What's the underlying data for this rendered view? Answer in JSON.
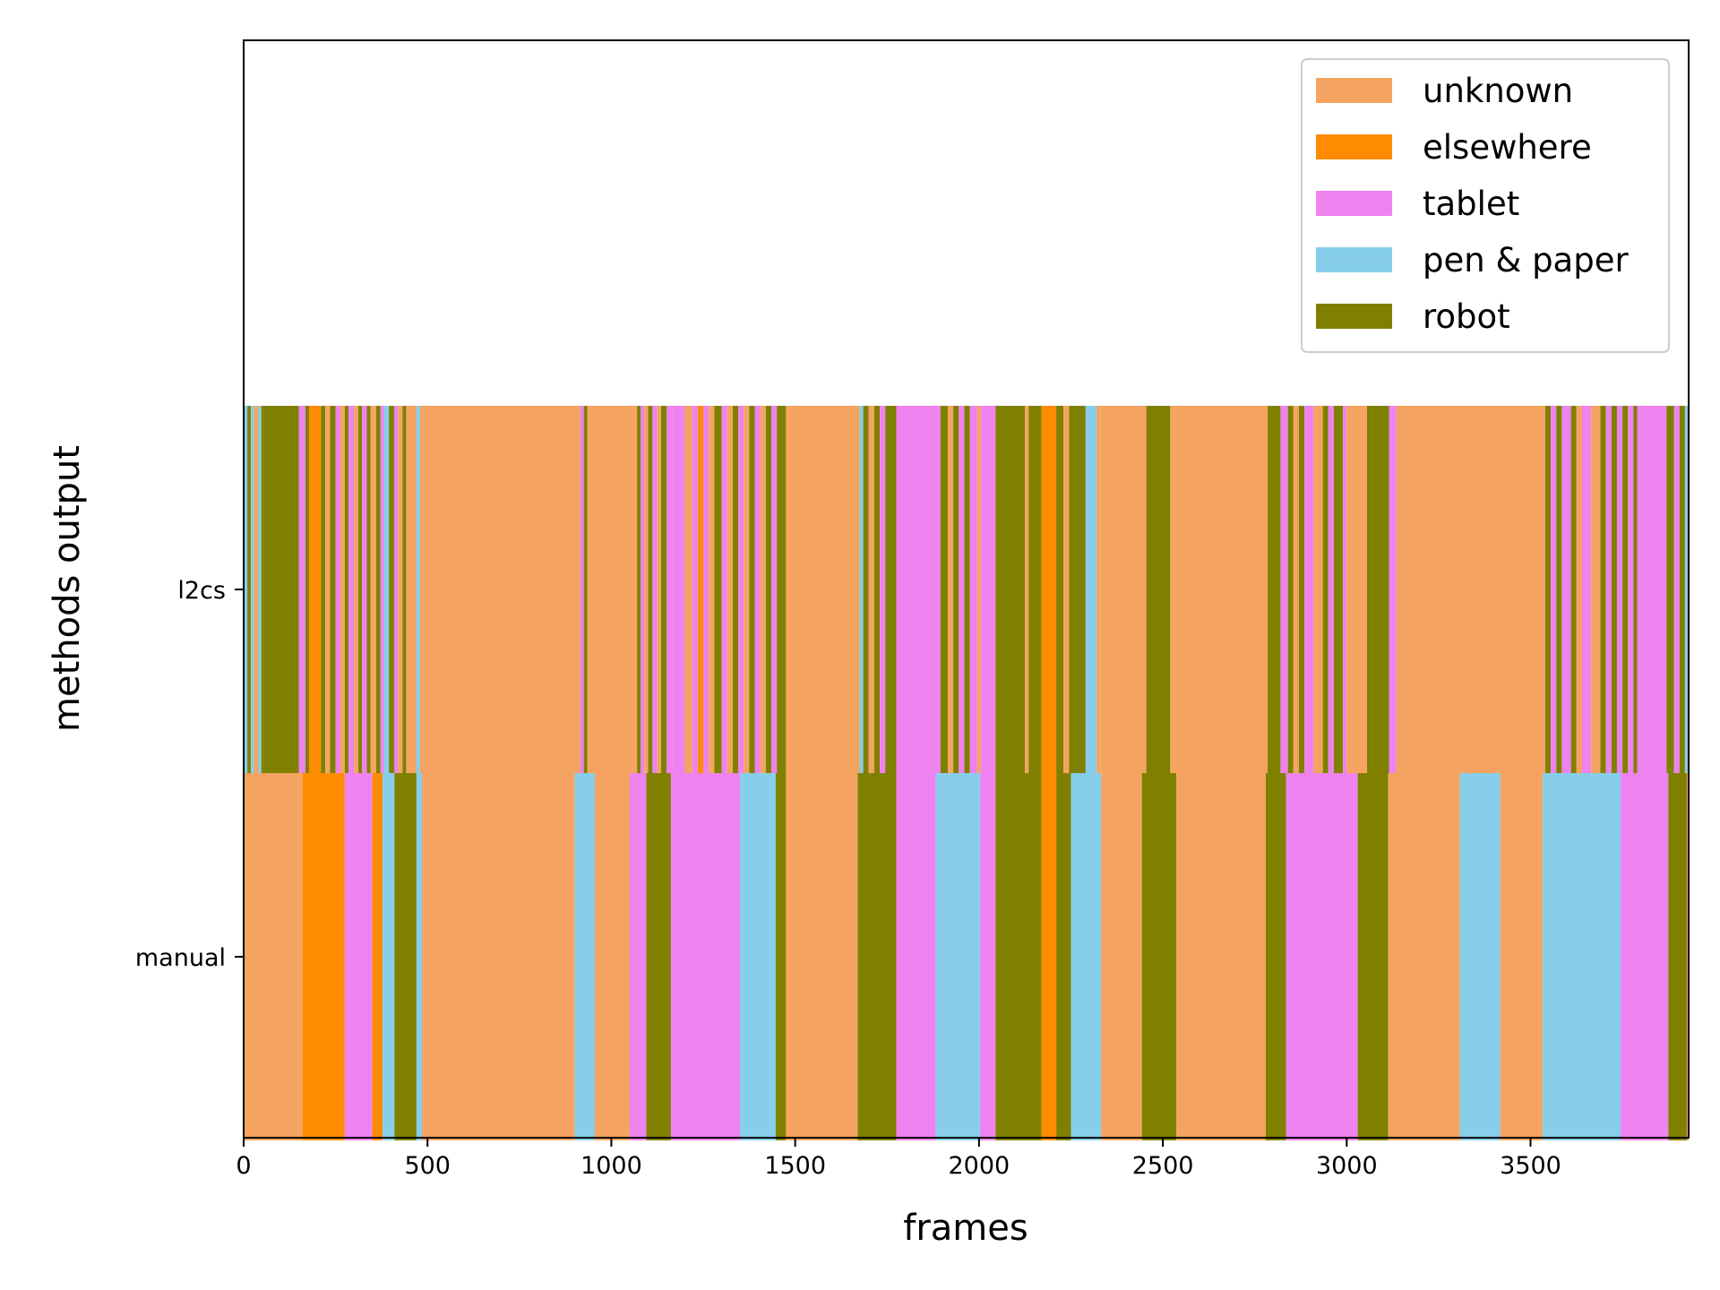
{
  "chart_data": {
    "type": "bar",
    "orientation": "horizontal-timeline",
    "title": "",
    "xlabel": "frames",
    "ylabel": "methods output",
    "xlim": [
      0,
      3930
    ],
    "x_ticks": [
      0,
      500,
      1000,
      1500,
      2000,
      2500,
      3000,
      3500
    ],
    "x_tick_labels": [
      "0",
      "500",
      "1000",
      "1500",
      "2000",
      "2500",
      "3000",
      "3500"
    ],
    "categories": [
      "manual",
      "l2cs"
    ],
    "grid": false,
    "legend_position": "top-right",
    "legend": [
      {
        "name": "unknown",
        "color": "#F4A460"
      },
      {
        "name": "elsewhere",
        "color": "#FF8C00"
      },
      {
        "name": "tablet",
        "color": "#EE82EE"
      },
      {
        "name": "pen & paper",
        "color": "#87CEEB"
      },
      {
        "name": "robot",
        "color": "#808000"
      }
    ],
    "series": [
      {
        "name": "manual",
        "segments": [
          [
            0,
            160,
            "unknown"
          ],
          [
            160,
            275,
            "elsewhere"
          ],
          [
            275,
            350,
            "tablet"
          ],
          [
            350,
            378,
            "elsewhere"
          ],
          [
            378,
            410,
            "pen & paper"
          ],
          [
            410,
            470,
            "robot"
          ],
          [
            470,
            485,
            "pen & paper"
          ],
          [
            485,
            900,
            "unknown"
          ],
          [
            900,
            955,
            "pen & paper"
          ],
          [
            955,
            1050,
            "unknown"
          ],
          [
            1050,
            1095,
            "tablet"
          ],
          [
            1095,
            1162,
            "robot"
          ],
          [
            1162,
            1350,
            "tablet"
          ],
          [
            1350,
            1447,
            "pen & paper"
          ],
          [
            1447,
            1475,
            "robot"
          ],
          [
            1475,
            1670,
            "unknown"
          ],
          [
            1670,
            1775,
            "robot"
          ],
          [
            1775,
            1882,
            "tablet"
          ],
          [
            1882,
            2003,
            "pen & paper"
          ],
          [
            2003,
            2045,
            "tablet"
          ],
          [
            2045,
            2170,
            "robot"
          ],
          [
            2170,
            2210,
            "elsewhere"
          ],
          [
            2210,
            2250,
            "robot"
          ],
          [
            2250,
            2332,
            "pen & paper"
          ],
          [
            2332,
            2443,
            "unknown"
          ],
          [
            2443,
            2537,
            "robot"
          ],
          [
            2537,
            2780,
            "unknown"
          ],
          [
            2780,
            2835,
            "robot"
          ],
          [
            2835,
            3030,
            "tablet"
          ],
          [
            3030,
            3113,
            "robot"
          ],
          [
            3113,
            3308,
            "unknown"
          ],
          [
            3308,
            3418,
            "pen & paper"
          ],
          [
            3418,
            3533,
            "unknown"
          ],
          [
            3533,
            3745,
            "pen & paper"
          ],
          [
            3745,
            3875,
            "tablet"
          ],
          [
            3875,
            3925,
            "robot"
          ],
          [
            3925,
            3930,
            "unknown"
          ]
        ]
      },
      {
        "name": "l2cs",
        "segments": [
          [
            0,
            10,
            "pen & paper"
          ],
          [
            10,
            20,
            "robot"
          ],
          [
            20,
            28,
            "pen & paper"
          ],
          [
            28,
            40,
            "unknown"
          ],
          [
            40,
            48,
            "pen & paper"
          ],
          [
            48,
            55,
            "robot"
          ],
          [
            55,
            150,
            "robot"
          ],
          [
            150,
            168,
            "tablet"
          ],
          [
            168,
            178,
            "robot"
          ],
          [
            178,
            210,
            "elsewhere"
          ],
          [
            210,
            222,
            "robot"
          ],
          [
            222,
            235,
            "unknown"
          ],
          [
            235,
            250,
            "robot"
          ],
          [
            250,
            262,
            "tablet"
          ],
          [
            262,
            275,
            "unknown"
          ],
          [
            275,
            285,
            "robot"
          ],
          [
            285,
            300,
            "tablet"
          ],
          [
            300,
            312,
            "unknown"
          ],
          [
            312,
            322,
            "robot"
          ],
          [
            322,
            335,
            "tablet"
          ],
          [
            335,
            345,
            "robot"
          ],
          [
            345,
            360,
            "unknown"
          ],
          [
            360,
            372,
            "robot"
          ],
          [
            372,
            382,
            "tablet"
          ],
          [
            382,
            395,
            "pen & paper"
          ],
          [
            395,
            410,
            "robot"
          ],
          [
            410,
            420,
            "tablet"
          ],
          [
            420,
            432,
            "unknown"
          ],
          [
            432,
            442,
            "robot"
          ],
          [
            442,
            470,
            "unknown"
          ],
          [
            470,
            480,
            "pen & paper"
          ],
          [
            480,
            915,
            "unknown"
          ],
          [
            915,
            925,
            "tablet"
          ],
          [
            925,
            935,
            "robot"
          ],
          [
            935,
            1070,
            "unknown"
          ],
          [
            1070,
            1080,
            "robot"
          ],
          [
            1080,
            1090,
            "tablet"
          ],
          [
            1090,
            1100,
            "unknown"
          ],
          [
            1100,
            1112,
            "robot"
          ],
          [
            1112,
            1125,
            "tablet"
          ],
          [
            1125,
            1135,
            "unknown"
          ],
          [
            1135,
            1150,
            "robot"
          ],
          [
            1150,
            1165,
            "tablet"
          ],
          [
            1165,
            1200,
            "tablet"
          ],
          [
            1200,
            1220,
            "unknown"
          ],
          [
            1220,
            1235,
            "tablet"
          ],
          [
            1235,
            1250,
            "elsewhere"
          ],
          [
            1250,
            1265,
            "tablet"
          ],
          [
            1265,
            1280,
            "unknown"
          ],
          [
            1280,
            1300,
            "robot"
          ],
          [
            1300,
            1315,
            "tablet"
          ],
          [
            1315,
            1330,
            "unknown"
          ],
          [
            1330,
            1345,
            "robot"
          ],
          [
            1345,
            1360,
            "tablet"
          ],
          [
            1360,
            1375,
            "unknown"
          ],
          [
            1375,
            1390,
            "robot"
          ],
          [
            1390,
            1405,
            "tablet"
          ],
          [
            1405,
            1420,
            "unknown"
          ],
          [
            1420,
            1435,
            "robot"
          ],
          [
            1435,
            1450,
            "tablet"
          ],
          [
            1450,
            1475,
            "robot"
          ],
          [
            1475,
            1675,
            "unknown"
          ],
          [
            1675,
            1685,
            "pen & paper"
          ],
          [
            1685,
            1700,
            "robot"
          ],
          [
            1700,
            1715,
            "unknown"
          ],
          [
            1715,
            1730,
            "robot"
          ],
          [
            1730,
            1745,
            "tablet"
          ],
          [
            1745,
            1775,
            "robot"
          ],
          [
            1775,
            1895,
            "tablet"
          ],
          [
            1895,
            1915,
            "robot"
          ],
          [
            1915,
            1930,
            "unknown"
          ],
          [
            1930,
            1945,
            "robot"
          ],
          [
            1945,
            1960,
            "tablet"
          ],
          [
            1960,
            1975,
            "robot"
          ],
          [
            1975,
            1995,
            "tablet"
          ],
          [
            1995,
            2005,
            "unknown"
          ],
          [
            2005,
            2045,
            "tablet"
          ],
          [
            2045,
            2125,
            "robot"
          ],
          [
            2125,
            2135,
            "unknown"
          ],
          [
            2135,
            2170,
            "robot"
          ],
          [
            2170,
            2210,
            "elsewhere"
          ],
          [
            2210,
            2230,
            "robot"
          ],
          [
            2230,
            2245,
            "unknown"
          ],
          [
            2245,
            2290,
            "robot"
          ],
          [
            2290,
            2320,
            "pen & paper"
          ],
          [
            2320,
            2330,
            "unknown"
          ],
          [
            2330,
            2455,
            "unknown"
          ],
          [
            2455,
            2520,
            "robot"
          ],
          [
            2520,
            2530,
            "unknown"
          ],
          [
            2530,
            2785,
            "unknown"
          ],
          [
            2785,
            2820,
            "robot"
          ],
          [
            2820,
            2840,
            "tablet"
          ],
          [
            2840,
            2855,
            "robot"
          ],
          [
            2855,
            2870,
            "unknown"
          ],
          [
            2870,
            2885,
            "robot"
          ],
          [
            2885,
            2910,
            "tablet"
          ],
          [
            2910,
            2935,
            "unknown"
          ],
          [
            2935,
            2950,
            "robot"
          ],
          [
            2950,
            2965,
            "tablet"
          ],
          [
            2965,
            2990,
            "robot"
          ],
          [
            2990,
            3000,
            "tablet"
          ],
          [
            3000,
            3055,
            "unknown"
          ],
          [
            3055,
            3070,
            "robot"
          ],
          [
            3070,
            3115,
            "robot"
          ],
          [
            3115,
            3135,
            "tablet"
          ],
          [
            3135,
            3540,
            "unknown"
          ],
          [
            3540,
            3555,
            "robot"
          ],
          [
            3555,
            3570,
            "tablet"
          ],
          [
            3570,
            3585,
            "robot"
          ],
          [
            3585,
            3610,
            "tablet"
          ],
          [
            3610,
            3625,
            "robot"
          ],
          [
            3625,
            3640,
            "unknown"
          ],
          [
            3640,
            3665,
            "tablet"
          ],
          [
            3665,
            3690,
            "unknown"
          ],
          [
            3690,
            3705,
            "robot"
          ],
          [
            3705,
            3720,
            "tablet"
          ],
          [
            3720,
            3735,
            "robot"
          ],
          [
            3735,
            3750,
            "tablet"
          ],
          [
            3750,
            3765,
            "robot"
          ],
          [
            3765,
            3780,
            "tablet"
          ],
          [
            3780,
            3790,
            "robot"
          ],
          [
            3790,
            3870,
            "tablet"
          ],
          [
            3870,
            3890,
            "robot"
          ],
          [
            3890,
            3905,
            "tablet"
          ],
          [
            3905,
            3920,
            "robot"
          ],
          [
            3920,
            3930,
            "pen & paper"
          ]
        ]
      }
    ]
  }
}
